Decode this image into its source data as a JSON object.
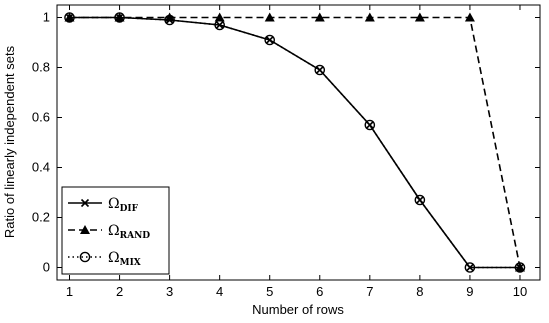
{
  "chart_data": {
    "type": "line",
    "xlabel": "Number of rows",
    "ylabel": "Ratio of linearly independent sets",
    "xlim": [
      0.75,
      10.4
    ],
    "ylim": [
      -0.05,
      1.05
    ],
    "xticks": [
      "1",
      "2",
      "3",
      "4",
      "5",
      "6",
      "7",
      "8",
      "9",
      "10"
    ],
    "yticks": [
      "0",
      "0.2",
      "0.4",
      "0.6",
      "0.8",
      "1"
    ],
    "x": [
      1,
      2,
      3,
      4,
      5,
      6,
      7,
      8,
      9,
      10
    ],
    "grid": false,
    "legend_position": "bottom-left",
    "series": [
      {
        "name": "Ω",
        "subscript": "DIF",
        "line_style": "solid",
        "marker": "x",
        "values": [
          1,
          1,
          0.99,
          0.97,
          0.91,
          0.79,
          0.57,
          0.27,
          0,
          0
        ]
      },
      {
        "name": "Ω",
        "subscript": "RAND",
        "line_style": "dashed",
        "marker": "triangle",
        "values": [
          1,
          1,
          1,
          1,
          1,
          1,
          1,
          1,
          1,
          0
        ]
      },
      {
        "name": "Ω",
        "subscript": "MIX",
        "line_style": "dotted",
        "marker": "circle",
        "values": [
          1,
          1,
          0.99,
          0.97,
          0.91,
          0.79,
          0.57,
          0.27,
          0,
          0
        ]
      }
    ]
  }
}
